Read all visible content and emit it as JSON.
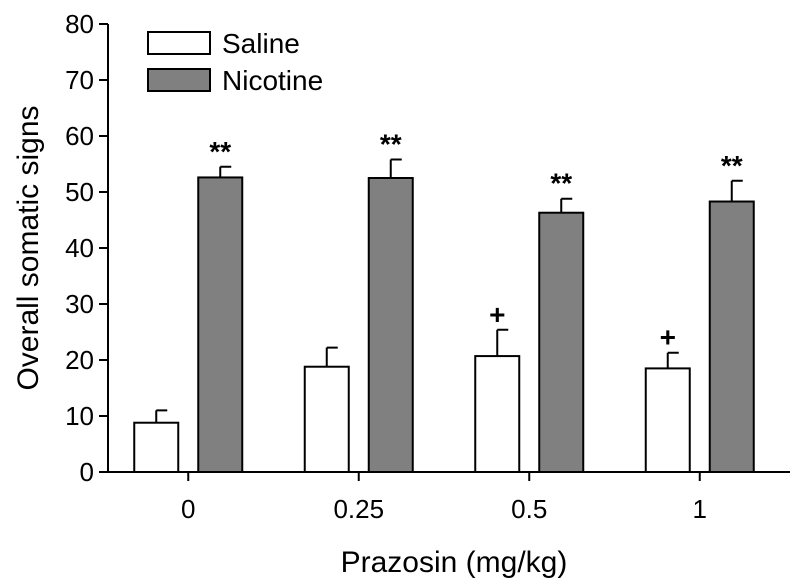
{
  "chart_data": {
    "type": "bar",
    "title": "",
    "xlabel": "Prazosin (mg/kg)",
    "ylabel": "Overall somatic signs",
    "categories": [
      "0",
      "0.25",
      "0.5",
      "1"
    ],
    "ylim": [
      0,
      80
    ],
    "yticks": [
      "0",
      "10",
      "20",
      "30",
      "40",
      "50",
      "60",
      "70",
      "80"
    ],
    "legend_position": "top-left",
    "series": [
      {
        "name": "Saline",
        "color": "#ffffff",
        "values": [
          8.8,
          18.8,
          20.7,
          18.5
        ],
        "errors": [
          2.2,
          3.4,
          4.7,
          2.8
        ],
        "annotations": [
          "",
          "",
          "+",
          "+"
        ]
      },
      {
        "name": "Nicotine",
        "color": "#808080",
        "values": [
          52.6,
          52.5,
          46.3,
          48.3
        ],
        "errors": [
          1.9,
          3.3,
          2.5,
          3.7
        ],
        "annotations": [
          "**",
          "**",
          "**",
          "**"
        ]
      }
    ]
  }
}
